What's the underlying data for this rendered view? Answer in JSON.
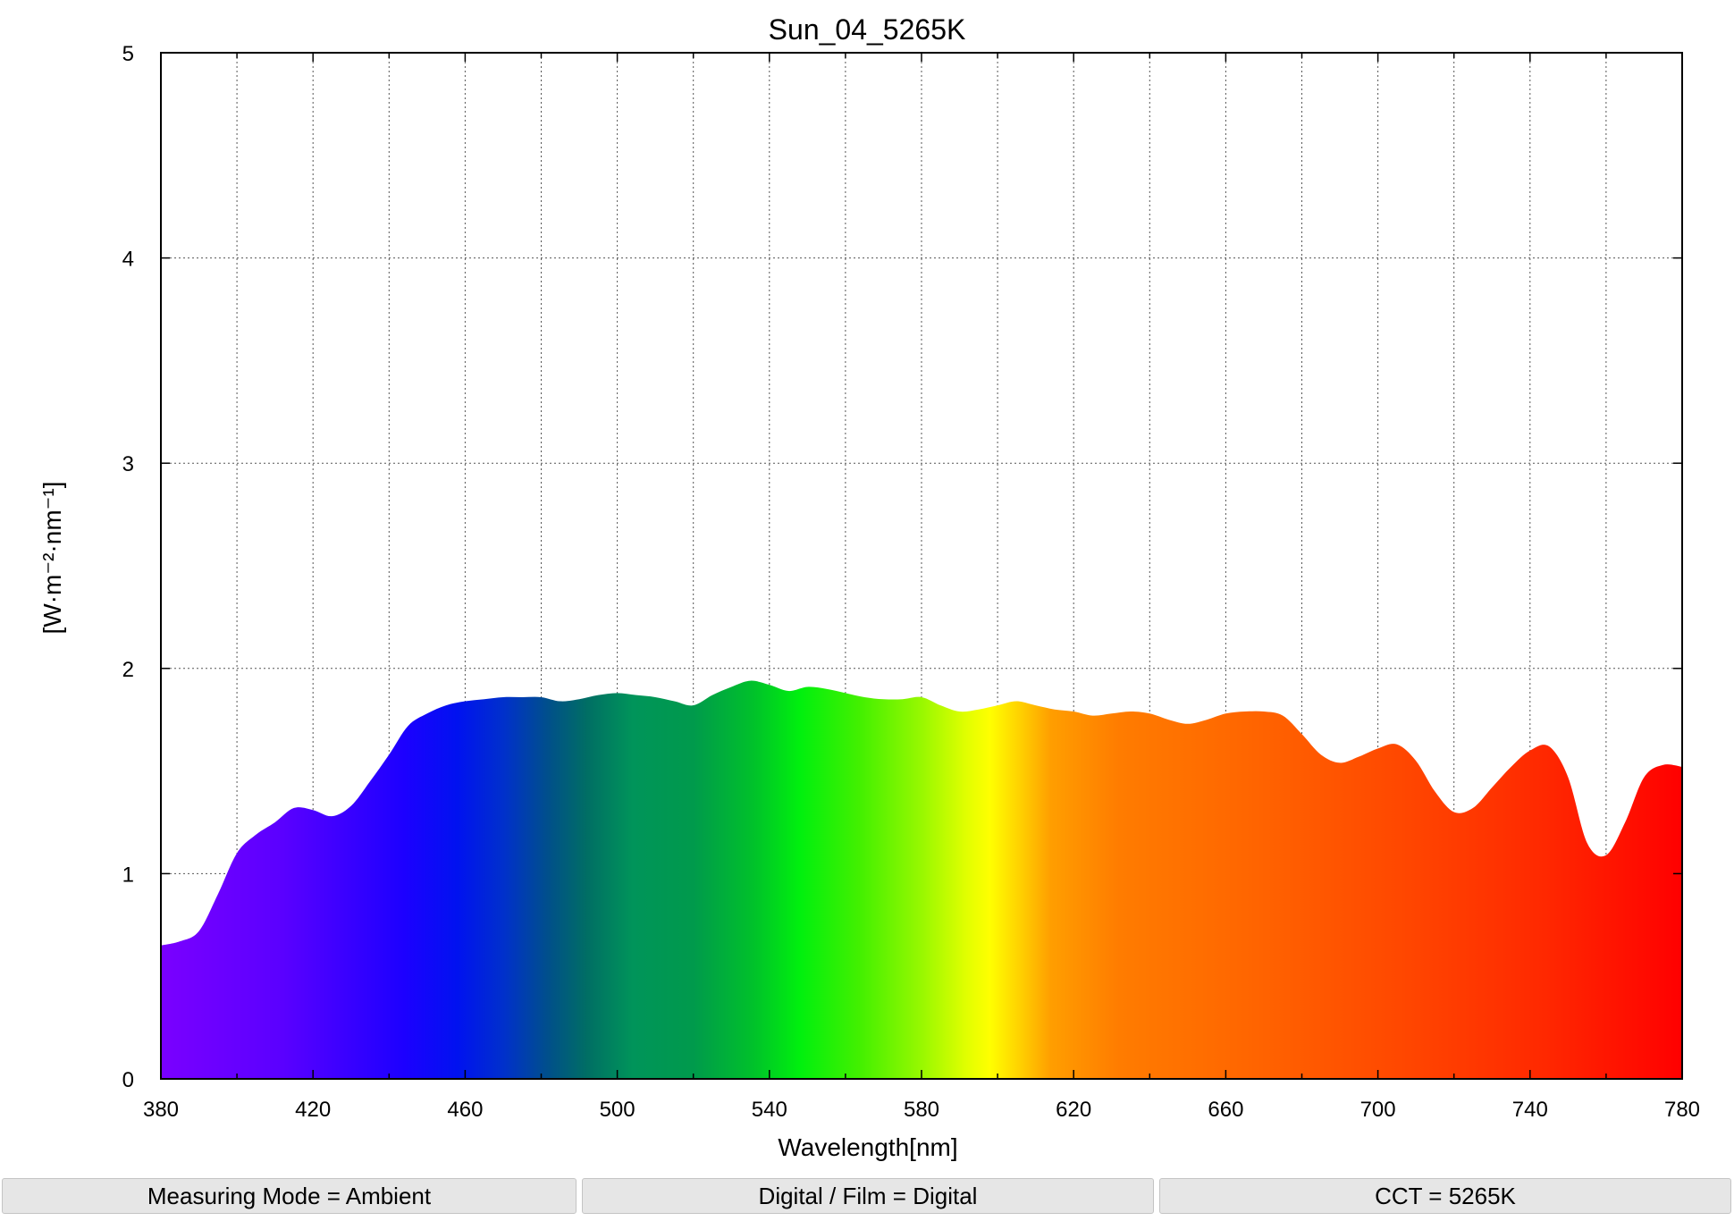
{
  "chart_data": {
    "type": "area",
    "title": "Sun_04_5265K",
    "xlabel": "Wavelength[nm]",
    "ylabel": "[W·m⁻²·nm⁻¹]",
    "xlim": [
      380,
      780
    ],
    "ylim": [
      0,
      5
    ],
    "xticks": [
      380,
      420,
      460,
      500,
      540,
      580,
      620,
      660,
      700,
      740,
      780
    ],
    "xtick_labels": [
      "380",
      "420",
      "460",
      "500",
      "540",
      "580",
      "620",
      "660",
      "700",
      "740",
      "780"
    ],
    "yticks": [
      0,
      1,
      2,
      3,
      4,
      5
    ],
    "ytick_labels": [
      "0",
      "1",
      "2",
      "3",
      "4",
      "5"
    ],
    "grid": true,
    "fill": "spectrum",
    "series": [
      {
        "x": [
          380,
          385,
          390,
          395,
          400,
          405,
          410,
          415,
          420,
          425,
          430,
          435,
          440,
          445,
          450,
          455,
          460,
          465,
          470,
          475,
          480,
          485,
          490,
          495,
          500,
          505,
          510,
          515,
          520,
          525,
          530,
          535,
          540,
          545,
          550,
          555,
          560,
          565,
          570,
          575,
          580,
          585,
          590,
          595,
          600,
          605,
          610,
          615,
          620,
          625,
          630,
          635,
          640,
          645,
          650,
          655,
          660,
          665,
          670,
          675,
          680,
          685,
          690,
          695,
          700,
          705,
          710,
          715,
          720,
          725,
          730,
          735,
          740,
          745,
          750,
          755,
          760,
          765,
          770,
          775,
          780
        ],
        "y": [
          0.65,
          0.67,
          0.72,
          0.9,
          1.1,
          1.19,
          1.25,
          1.32,
          1.31,
          1.28,
          1.33,
          1.45,
          1.58,
          1.72,
          1.78,
          1.82,
          1.84,
          1.85,
          1.86,
          1.86,
          1.86,
          1.84,
          1.85,
          1.87,
          1.88,
          1.87,
          1.86,
          1.84,
          1.82,
          1.87,
          1.91,
          1.94,
          1.92,
          1.89,
          1.91,
          1.9,
          1.88,
          1.86,
          1.85,
          1.85,
          1.86,
          1.82,
          1.79,
          1.8,
          1.82,
          1.84,
          1.82,
          1.8,
          1.79,
          1.77,
          1.78,
          1.79,
          1.78,
          1.75,
          1.73,
          1.75,
          1.78,
          1.79,
          1.79,
          1.77,
          1.68,
          1.58,
          1.54,
          1.57,
          1.61,
          1.63,
          1.55,
          1.4,
          1.3,
          1.32,
          1.42,
          1.52,
          1.6,
          1.62,
          1.47,
          1.15,
          1.09,
          1.25,
          1.47,
          1.53,
          1.52
        ]
      }
    ]
  },
  "status_bar": {
    "measuring_mode": "Measuring Mode = Ambient",
    "digital_film": "Digital / Film = Digital",
    "cct": "CCT = 5265K"
  }
}
